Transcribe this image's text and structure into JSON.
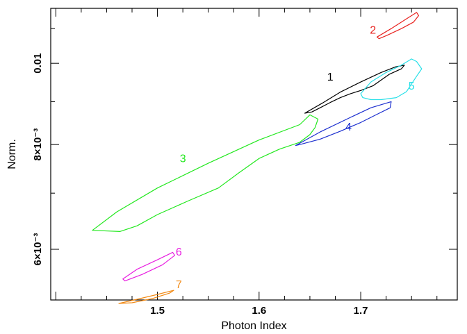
{
  "chart_data": {
    "type": "contour",
    "xlabel": "Photon Index",
    "ylabel": "Norm.",
    "xlim": [
      1.395,
      1.795
    ],
    "ylim": [
      0.00522,
      0.01163
    ],
    "x_ticks": [
      {
        "value": 1.5,
        "label": "1.5"
      },
      {
        "value": 1.6,
        "label": "1.6"
      },
      {
        "value": 1.7,
        "label": "1.7"
      }
    ],
    "y_ticks": [
      {
        "value": 0.006,
        "label": "6×10⁻³"
      },
      {
        "value": 0.008,
        "label": "8×10⁻³"
      },
      {
        "value": 0.01,
        "label": "0.01"
      }
    ],
    "series": [
      {
        "name": "1",
        "color": "#000000",
        "label_at": [
          1.667,
          0.00954
        ],
        "points": [
          [
            1.645,
            0.00872
          ],
          [
            1.662,
            0.00896
          ],
          [
            1.68,
            0.00924
          ],
          [
            1.7,
            0.0095
          ],
          [
            1.72,
            0.00975
          ],
          [
            1.734,
            0.0099
          ],
          [
            1.743,
            0.00995
          ],
          [
            1.74,
            0.00985
          ],
          [
            1.728,
            0.0097
          ],
          [
            1.712,
            0.0094
          ],
          [
            1.7,
            0.00928
          ],
          [
            1.69,
            0.0092
          ],
          [
            1.68,
            0.0091
          ],
          [
            1.67,
            0.00898
          ],
          [
            1.66,
            0.00885
          ],
          [
            1.652,
            0.00875
          ],
          [
            1.645,
            0.00872
          ]
        ]
      },
      {
        "name": "2",
        "color": "#e8231f",
        "label_at": [
          1.709,
          0.01085
        ],
        "points": [
          [
            1.716,
            0.01075
          ],
          [
            1.73,
            0.011
          ],
          [
            1.745,
            0.0113
          ],
          [
            1.755,
            0.0115
          ],
          [
            1.757,
            0.0114
          ],
          [
            1.752,
            0.0112
          ],
          [
            1.74,
            0.011
          ],
          [
            1.726,
            0.0108
          ],
          [
            1.718,
            0.0107
          ],
          [
            1.716,
            0.01075
          ]
        ]
      },
      {
        "name": "3",
        "color": "#22e81e",
        "label_at": [
          1.522,
          0.00762
        ],
        "points": [
          [
            1.436,
            0.00632
          ],
          [
            1.46,
            0.00665
          ],
          [
            1.5,
            0.0071
          ],
          [
            1.55,
            0.0076
          ],
          [
            1.6,
            0.0081
          ],
          [
            1.64,
            0.00845
          ],
          [
            1.65,
            0.00868
          ],
          [
            1.658,
            0.00858
          ],
          [
            1.655,
            0.00838
          ],
          [
            1.65,
            0.00822
          ],
          [
            1.64,
            0.00805
          ],
          [
            1.62,
            0.0079
          ],
          [
            1.6,
            0.0077
          ],
          [
            1.58,
            0.0074
          ],
          [
            1.56,
            0.0071
          ],
          [
            1.53,
            0.00685
          ],
          [
            1.5,
            0.0066
          ],
          [
            1.48,
            0.0064
          ],
          [
            1.463,
            0.0063
          ],
          [
            1.436,
            0.00632
          ]
        ]
      },
      {
        "name": "4",
        "color": "#1c2fcf",
        "label_at": [
          1.685,
          0.00831
        ],
        "points": [
          [
            1.636,
            0.00798
          ],
          [
            1.66,
            0.00828
          ],
          [
            1.69,
            0.00862
          ],
          [
            1.71,
            0.00885
          ],
          [
            1.73,
            0.009
          ],
          [
            1.729,
            0.00885
          ],
          [
            1.715,
            0.00868
          ],
          [
            1.7,
            0.0085
          ],
          [
            1.68,
            0.0083
          ],
          [
            1.66,
            0.00812
          ],
          [
            1.64,
            0.008
          ],
          [
            1.636,
            0.00798
          ]
        ]
      },
      {
        "name": "5",
        "color": "#28e0e8",
        "label_at": [
          1.747,
          0.0093
        ],
        "points": [
          [
            1.7,
            0.0092
          ],
          [
            1.71,
            0.0095
          ],
          [
            1.725,
            0.00975
          ],
          [
            1.74,
            0.00995
          ],
          [
            1.75,
            0.01012
          ],
          [
            1.755,
            0.01005
          ],
          [
            1.76,
            0.00985
          ],
          [
            1.755,
            0.00965
          ],
          [
            1.75,
            0.00945
          ],
          [
            1.745,
            0.00925
          ],
          [
            1.735,
            0.0091
          ],
          [
            1.72,
            0.00905
          ],
          [
            1.71,
            0.00905
          ],
          [
            1.702,
            0.0091
          ],
          [
            1.7,
            0.0092
          ]
        ]
      },
      {
        "name": "6",
        "color": "#e81ee0",
        "label_at": [
          1.518,
          0.0059
        ],
        "points": [
          [
            1.466,
            0.00553
          ],
          [
            1.48,
            0.00568
          ],
          [
            1.5,
            0.00583
          ],
          [
            1.515,
            0.00595
          ],
          [
            1.517,
            0.0059
          ],
          [
            1.505,
            0.00575
          ],
          [
            1.485,
            0.0056
          ],
          [
            1.468,
            0.0055
          ],
          [
            1.466,
            0.00553
          ]
        ]
      },
      {
        "name": "7",
        "color": "#f28a15",
        "label_at": [
          1.518,
          0.00539
        ],
        "points": [
          [
            1.462,
            0.00517
          ],
          [
            1.48,
            0.00523
          ],
          [
            1.5,
            0.0053
          ],
          [
            1.516,
            0.00536
          ],
          [
            1.512,
            0.00532
          ],
          [
            1.495,
            0.00524
          ],
          [
            1.475,
            0.00518
          ],
          [
            1.462,
            0.00517
          ]
        ]
      }
    ]
  }
}
